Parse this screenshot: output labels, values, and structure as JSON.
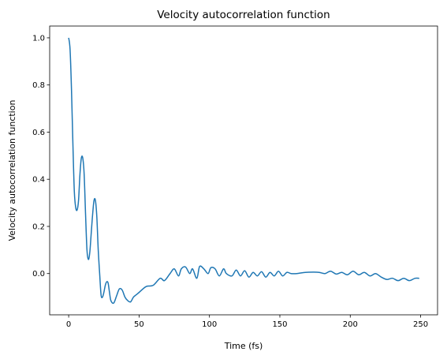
{
  "chart_data": {
    "type": "line",
    "title": "Velocity autocorrelation function",
    "xlabel": "Time (fs)",
    "ylabel": "Velocity autocorrelation function",
    "xlim": [
      -13.5,
      262
    ],
    "ylim": [
      -0.175,
      1.05
    ],
    "x_ticks": [
      0,
      50,
      100,
      150,
      200,
      250
    ],
    "y_ticks": [
      0.0,
      0.2,
      0.4,
      0.6,
      0.8,
      1.0
    ],
    "x_tick_labels": [
      "0",
      "50",
      "100",
      "150",
      "200",
      "250"
    ],
    "y_tick_labels": [
      "0.0",
      "0.2",
      "0.4",
      "0.6",
      "0.8",
      "1.0"
    ],
    "grid": false,
    "legend": "none",
    "series": [
      {
        "color": "#1f77b4",
        "x": [
          0,
          1,
          2,
          3,
          4,
          5,
          6,
          7,
          8,
          9,
          10,
          11,
          12,
          13,
          14,
          15,
          16,
          17,
          18,
          19,
          20,
          21,
          22,
          23,
          24,
          25,
          26,
          27,
          28,
          29,
          30,
          32,
          34,
          36,
          38,
          40,
          42,
          44,
          46,
          48,
          50,
          55,
          60,
          65,
          68,
          72,
          75,
          78,
          80,
          83,
          86,
          88,
          91,
          93,
          96,
          99,
          101,
          104,
          107,
          110,
          112,
          116,
          119,
          122,
          125,
          128,
          131,
          134,
          137,
          140,
          143,
          146,
          149,
          152,
          155,
          158,
          162,
          168,
          174,
          178,
          182,
          186,
          190,
          194,
          198,
          202,
          206,
          210,
          214,
          218,
          222,
          226,
          230,
          234,
          238,
          242,
          246,
          249
        ],
        "y": [
          1.0,
          0.95,
          0.78,
          0.55,
          0.35,
          0.28,
          0.27,
          0.31,
          0.42,
          0.49,
          0.49,
          0.42,
          0.25,
          0.1,
          0.06,
          0.09,
          0.17,
          0.25,
          0.31,
          0.31,
          0.24,
          0.1,
          0.0,
          -0.09,
          -0.1,
          -0.08,
          -0.05,
          -0.035,
          -0.04,
          -0.08,
          -0.115,
          -0.125,
          -0.095,
          -0.065,
          -0.07,
          -0.1,
          -0.115,
          -0.12,
          -0.1,
          -0.09,
          -0.08,
          -0.055,
          -0.05,
          -0.02,
          -0.03,
          0.0,
          0.02,
          -0.01,
          0.02,
          0.028,
          0.0,
          0.02,
          -0.02,
          0.03,
          0.02,
          0.0,
          0.025,
          0.02,
          -0.01,
          0.02,
          0.0,
          -0.01,
          0.015,
          -0.01,
          0.012,
          -0.015,
          0.005,
          -0.01,
          0.008,
          -0.015,
          0.005,
          -0.01,
          0.01,
          -0.01,
          0.005,
          0.0,
          0.0,
          0.005,
          0.006,
          0.005,
          0.0,
          0.01,
          -0.002,
          0.005,
          -0.005,
          0.01,
          -0.005,
          0.005,
          -0.01,
          0.0,
          -0.015,
          -0.025,
          -0.02,
          -0.03,
          -0.02,
          -0.03,
          -0.02,
          -0.02
        ]
      }
    ]
  }
}
